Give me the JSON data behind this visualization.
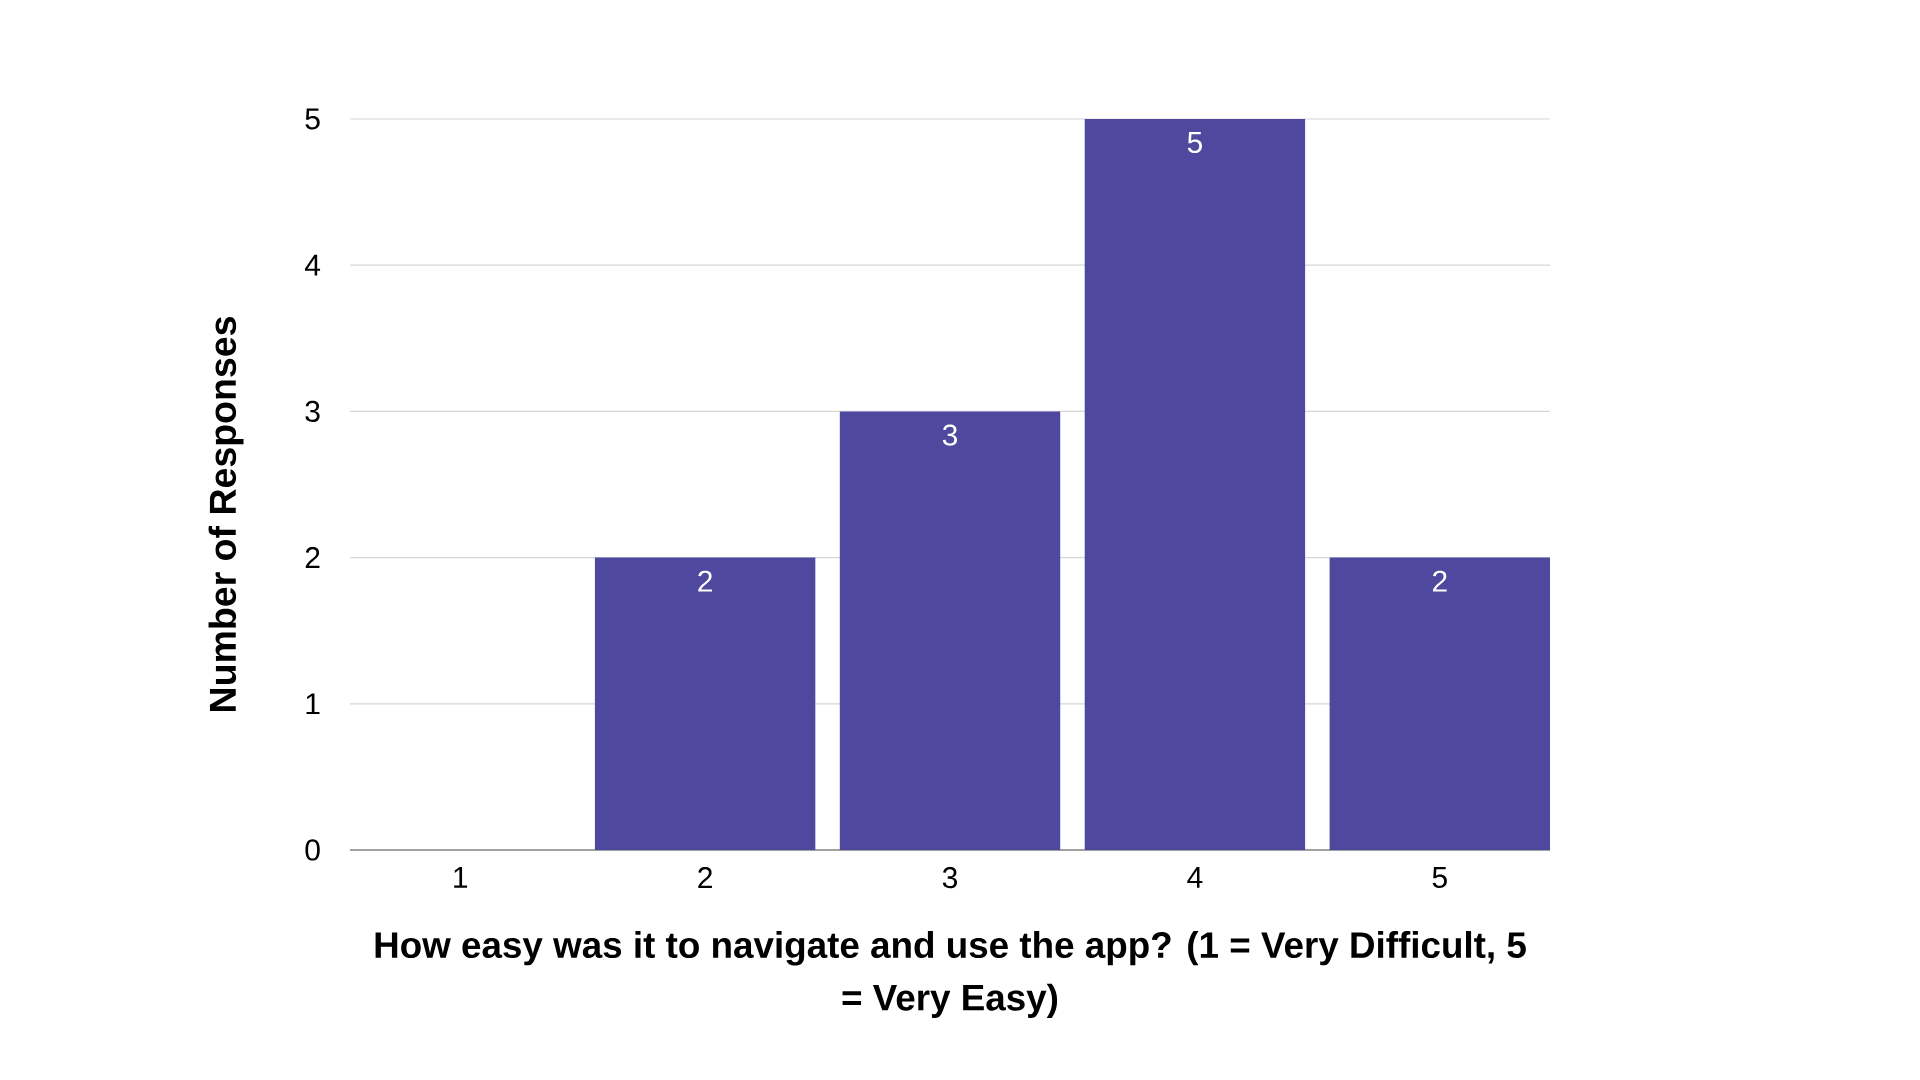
{
  "chart_data": {
    "type": "bar",
    "xlabel": "How easy was it to navigate and use the app? (1 = Very Difficult, 5 = Very Easy)",
    "ylabel": "Number of Responses",
    "categories": [
      "1",
      "2",
      "3",
      "4",
      "5"
    ],
    "values": [
      0,
      2,
      3,
      5,
      2
    ],
    "value_labels": [
      null,
      "2",
      "3",
      "5",
      "2"
    ],
    "color": "#4e499e",
    "ylim": [
      0,
      5
    ],
    "yticks": [
      0,
      1,
      2,
      3,
      4,
      5
    ],
    "grid": "y"
  }
}
